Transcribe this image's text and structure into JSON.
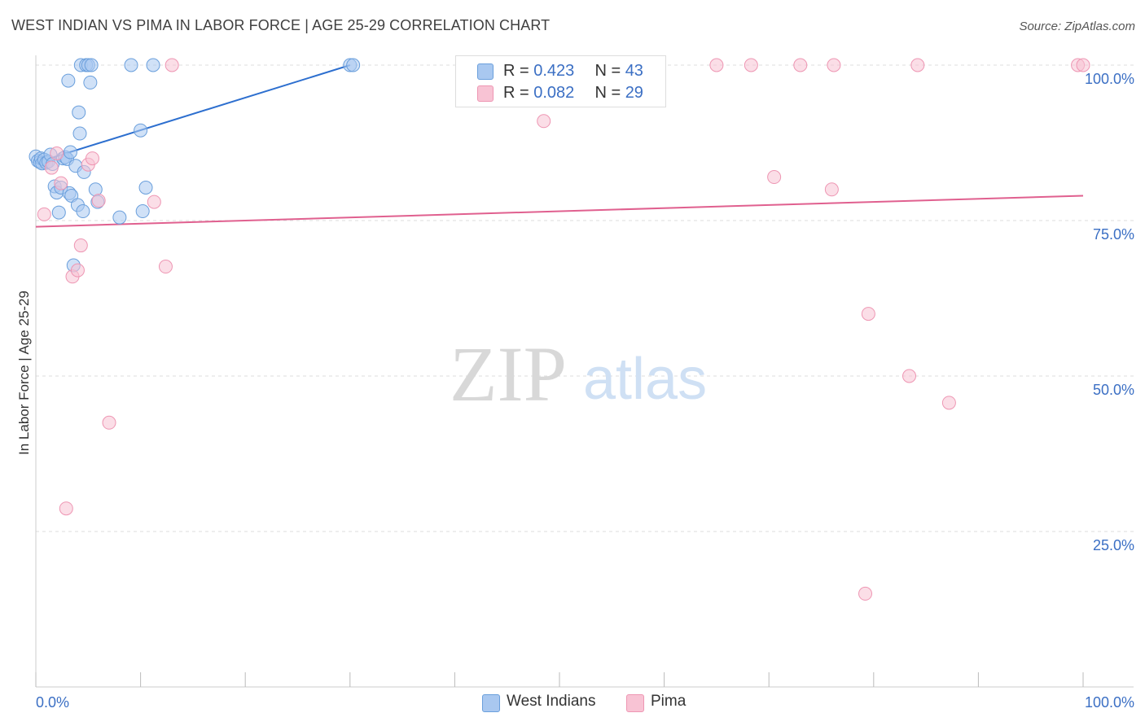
{
  "title": "WEST INDIAN VS PIMA IN LABOR FORCE | AGE 25-29 CORRELATION CHART",
  "source": "Source: ZipAtlas.com",
  "watermark": {
    "zip": "ZIP",
    "atlas": "atlas"
  },
  "colors": {
    "blue_fill": "#a9c8f0",
    "blue_stroke": "#6a9fdc",
    "blue_line": "#2d6fcf",
    "pink_fill": "#f8c3d4",
    "pink_stroke": "#ee96b3",
    "pink_line": "#e0608f",
    "tick_label": "#3b6fc4",
    "grid": "#dcdcdc"
  },
  "legend_top": [
    {
      "r_label": "R =",
      "r_value": "0.423",
      "n_label": "N =",
      "n_value": "43",
      "series": "West Indians"
    },
    {
      "r_label": "R =",
      "r_value": "0.082",
      "n_label": "N =",
      "n_value": "29",
      "series": "Pima"
    }
  ],
  "legend_bottom": [
    "West Indians",
    "Pima"
  ],
  "chart_data": {
    "type": "scatter",
    "title": "WEST INDIAN VS PIMA IN LABOR FORCE | AGE 25-29 CORRELATION CHART",
    "xlabel": "",
    "ylabel": "In Labor Force | Age 25-29",
    "xlim": [
      0,
      100
    ],
    "ylim": [
      0,
      100
    ],
    "x_tick_labels": [
      "0.0%",
      "100.0%"
    ],
    "y_tick_labels": [
      "25.0%",
      "50.0%",
      "75.0%",
      "100.0%"
    ],
    "y_ticks": [
      25,
      50,
      75,
      100
    ],
    "grid": true,
    "series": [
      {
        "name": "West Indians",
        "r": 0.423,
        "n": 43,
        "trend": {
          "x": [
            0,
            30
          ],
          "y": [
            84.3,
            100
          ]
        },
        "points": [
          {
            "x": 0.0,
            "y": 85.3
          },
          {
            "x": 0.2,
            "y": 84.6
          },
          {
            "x": 0.4,
            "y": 84.4
          },
          {
            "x": 0.5,
            "y": 85.0
          },
          {
            "x": 0.6,
            "y": 84.2
          },
          {
            "x": 0.8,
            "y": 84.8
          },
          {
            "x": 1.0,
            "y": 84.3
          },
          {
            "x": 1.2,
            "y": 84.5
          },
          {
            "x": 1.4,
            "y": 85.6
          },
          {
            "x": 1.6,
            "y": 84.1
          },
          {
            "x": 1.8,
            "y": 80.5
          },
          {
            "x": 2.0,
            "y": 79.5
          },
          {
            "x": 2.2,
            "y": 76.3
          },
          {
            "x": 2.4,
            "y": 80.3
          },
          {
            "x": 2.6,
            "y": 85.0
          },
          {
            "x": 2.8,
            "y": 85.2
          },
          {
            "x": 3.0,
            "y": 84.9
          },
          {
            "x": 3.2,
            "y": 79.4
          },
          {
            "x": 3.4,
            "y": 79.0
          },
          {
            "x": 3.1,
            "y": 97.5
          },
          {
            "x": 3.3,
            "y": 86.0
          },
          {
            "x": 3.6,
            "y": 67.8
          },
          {
            "x": 3.8,
            "y": 83.8
          },
          {
            "x": 4.0,
            "y": 77.5
          },
          {
            "x": 4.1,
            "y": 92.4
          },
          {
            "x": 4.2,
            "y": 89.0
          },
          {
            "x": 4.5,
            "y": 76.5
          },
          {
            "x": 4.6,
            "y": 82.8
          },
          {
            "x": 4.3,
            "y": 100
          },
          {
            "x": 4.8,
            "y": 100
          },
          {
            "x": 5.0,
            "y": 100
          },
          {
            "x": 5.3,
            "y": 100
          },
          {
            "x": 5.2,
            "y": 97.2
          },
          {
            "x": 5.7,
            "y": 80.0
          },
          {
            "x": 5.9,
            "y": 78.0
          },
          {
            "x": 8.0,
            "y": 75.5
          },
          {
            "x": 9.1,
            "y": 100
          },
          {
            "x": 10.0,
            "y": 89.5
          },
          {
            "x": 10.2,
            "y": 76.5
          },
          {
            "x": 10.5,
            "y": 80.3
          },
          {
            "x": 11.2,
            "y": 100
          },
          {
            "x": 30.0,
            "y": 100
          },
          {
            "x": 30.3,
            "y": 100
          }
        ]
      },
      {
        "name": "Pima",
        "r": 0.082,
        "n": 29,
        "trend": {
          "x": [
            0,
            100
          ],
          "y": [
            74.0,
            79.0
          ]
        },
        "points": [
          {
            "x": 0.8,
            "y": 76.0
          },
          {
            "x": 1.5,
            "y": 83.5
          },
          {
            "x": 2.0,
            "y": 85.8
          },
          {
            "x": 2.4,
            "y": 81.0
          },
          {
            "x": 2.9,
            "y": 28.7
          },
          {
            "x": 3.5,
            "y": 66.0
          },
          {
            "x": 4.0,
            "y": 67.0
          },
          {
            "x": 4.3,
            "y": 71.0
          },
          {
            "x": 5.0,
            "y": 84.0
          },
          {
            "x": 5.4,
            "y": 85.0
          },
          {
            "x": 6.0,
            "y": 78.2
          },
          {
            "x": 7.0,
            "y": 42.5
          },
          {
            "x": 11.3,
            "y": 78.0
          },
          {
            "x": 12.4,
            "y": 67.6
          },
          {
            "x": 13.0,
            "y": 100
          },
          {
            "x": 48.5,
            "y": 91.0
          },
          {
            "x": 65.0,
            "y": 100
          },
          {
            "x": 68.3,
            "y": 100
          },
          {
            "x": 70.5,
            "y": 82.0
          },
          {
            "x": 73.0,
            "y": 100
          },
          {
            "x": 76.0,
            "y": 80.0
          },
          {
            "x": 76.2,
            "y": 100
          },
          {
            "x": 79.2,
            "y": 15.0
          },
          {
            "x": 79.5,
            "y": 60.0
          },
          {
            "x": 83.4,
            "y": 50.0
          },
          {
            "x": 84.2,
            "y": 100
          },
          {
            "x": 87.2,
            "y": 45.7
          },
          {
            "x": 99.5,
            "y": 100
          },
          {
            "x": 100.0,
            "y": 100
          }
        ]
      }
    ]
  }
}
